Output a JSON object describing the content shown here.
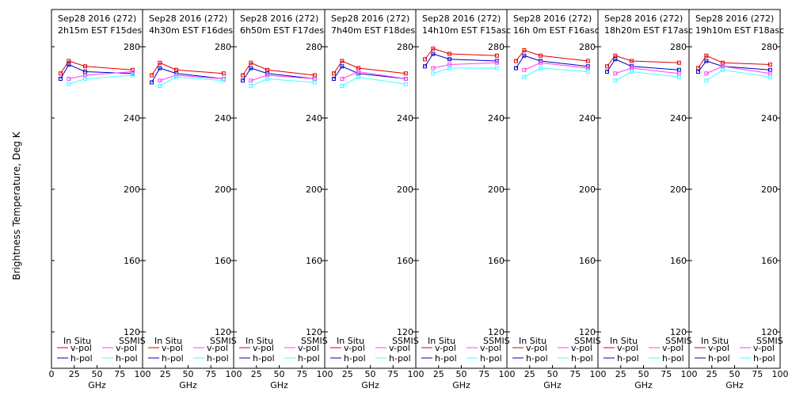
{
  "figure": {
    "ylabel": "Brightness Temperature, Deg K",
    "xlabel": "GHz",
    "legend_in_situ": "In Situ",
    "legend_ssmis": "SSMIS",
    "legend_vpol": "v-pol",
    "legend_hpol": "h-pol",
    "colors": {
      "insitu_v": "#e00000",
      "insitu_h": "#0000c0",
      "ssmis_v": "#ff40ff",
      "ssmis_h": "#40ffff",
      "axis": "#000000"
    }
  },
  "chart_data": [
    {
      "type": "line",
      "title_line1": "Sep28 2016 (272)",
      "title_line2": "2h15m EST F15des",
      "xlabel": "GHz",
      "ylabel": "Brightness Temperature, Deg K",
      "x_ticks": [
        "0",
        "25",
        "50",
        "75",
        "100"
      ],
      "y_ticks": [
        "120",
        "160",
        "200",
        "240",
        "280"
      ],
      "xlim": [
        0,
        100
      ],
      "ylim": [
        100,
        295
      ],
      "x": [
        10,
        19,
        37,
        89
      ],
      "series": [
        {
          "name": "In Situ v-pol",
          "values": [
            265,
            272,
            269,
            267
          ]
        },
        {
          "name": "In Situ h-pol",
          "values": [
            262,
            270,
            266,
            265
          ]
        },
        {
          "name": "SSMIS v-pol",
          "values": [
            null,
            262,
            264,
            266
          ]
        },
        {
          "name": "SSMIS h-pol",
          "values": [
            null,
            259,
            262,
            264
          ]
        }
      ]
    },
    {
      "type": "line",
      "title_line1": "Sep28 2016 (272)",
      "title_line2": "4h30m EST F16des",
      "xlabel": "GHz",
      "ylabel": "",
      "x_ticks": [
        "25",
        "50",
        "75",
        "100"
      ],
      "y_ticks": [
        "120",
        "160",
        "200",
        "240",
        "280"
      ],
      "xlim": [
        0,
        100
      ],
      "ylim": [
        100,
        295
      ],
      "x": [
        10,
        19,
        37,
        89
      ],
      "series": [
        {
          "name": "In Situ v-pol",
          "values": [
            264,
            271,
            267,
            265
          ]
        },
        {
          "name": "In Situ h-pol",
          "values": [
            260,
            268,
            265,
            262
          ]
        },
        {
          "name": "SSMIS v-pol",
          "values": [
            null,
            261,
            264,
            262
          ]
        },
        {
          "name": "SSMIS h-pol",
          "values": [
            null,
            258,
            263,
            261
          ]
        }
      ]
    },
    {
      "type": "line",
      "title_line1": "Sep28 2016 (272)",
      "title_line2": "6h50m EST F17des",
      "xlabel": "GHz",
      "ylabel": "",
      "x_ticks": [
        "25",
        "50",
        "75",
        "100"
      ],
      "y_ticks": [
        "120",
        "160",
        "200",
        "240",
        "280"
      ],
      "xlim": [
        0,
        100
      ],
      "ylim": [
        100,
        295
      ],
      "x": [
        10,
        19,
        37,
        89
      ],
      "series": [
        {
          "name": "In Situ v-pol",
          "values": [
            264,
            271,
            267,
            264
          ]
        },
        {
          "name": "In Situ h-pol",
          "values": [
            261,
            268,
            265,
            262
          ]
        },
        {
          "name": "SSMIS v-pol",
          "values": [
            null,
            261,
            264,
            262
          ]
        },
        {
          "name": "SSMIS h-pol",
          "values": [
            null,
            258,
            262,
            260
          ]
        }
      ]
    },
    {
      "type": "line",
      "title_line1": "Sep28 2016 (272)",
      "title_line2": "7h40m EST F18des",
      "xlabel": "GHz",
      "ylabel": "",
      "x_ticks": [
        "25",
        "50",
        "75",
        "100"
      ],
      "y_ticks": [
        "120",
        "160",
        "200",
        "240",
        "280"
      ],
      "xlim": [
        0,
        100
      ],
      "ylim": [
        100,
        295
      ],
      "x": [
        10,
        19,
        37,
        89
      ],
      "series": [
        {
          "name": "In Situ v-pol",
          "values": [
            265,
            272,
            268,
            265
          ]
        },
        {
          "name": "In Situ h-pol",
          "values": [
            262,
            269,
            265,
            262
          ]
        },
        {
          "name": "SSMIS v-pol",
          "values": [
            null,
            262,
            266,
            262
          ]
        },
        {
          "name": "SSMIS h-pol",
          "values": [
            null,
            258,
            263,
            259
          ]
        }
      ]
    },
    {
      "type": "line",
      "title_line1": "Sep28 2016 (272)",
      "title_line2": "14h10m EST F15asc",
      "xlabel": "GHz",
      "ylabel": "",
      "x_ticks": [
        "25",
        "50",
        "75",
        "100"
      ],
      "y_ticks": [
        "120",
        "160",
        "200",
        "240",
        "280"
      ],
      "xlim": [
        0,
        100
      ],
      "ylim": [
        100,
        295
      ],
      "x": [
        10,
        19,
        37,
        89
      ],
      "series": [
        {
          "name": "In Situ v-pol",
          "values": [
            273,
            279,
            276,
            275
          ]
        },
        {
          "name": "In Situ h-pol",
          "values": [
            269,
            276,
            273,
            272
          ]
        },
        {
          "name": "SSMIS v-pol",
          "values": [
            null,
            268,
            270,
            271
          ]
        },
        {
          "name": "SSMIS h-pol",
          "values": [
            null,
            265,
            268,
            268
          ]
        }
      ]
    },
    {
      "type": "line",
      "title_line1": "Sep28 2016 (272)",
      "title_line2": "16h 0m EST F16asc",
      "xlabel": "GHz",
      "ylabel": "",
      "x_ticks": [
        "25",
        "50",
        "75",
        "100"
      ],
      "y_ticks": [
        "120",
        "160",
        "200",
        "240",
        "280"
      ],
      "xlim": [
        0,
        100
      ],
      "ylim": [
        100,
        295
      ],
      "x": [
        10,
        19,
        37,
        89
      ],
      "series": [
        {
          "name": "In Situ v-pol",
          "values": [
            272,
            278,
            275,
            272
          ]
        },
        {
          "name": "In Situ h-pol",
          "values": [
            268,
            275,
            272,
            269
          ]
        },
        {
          "name": "SSMIS v-pol",
          "values": [
            null,
            267,
            271,
            268
          ]
        },
        {
          "name": "SSMIS h-pol",
          "values": [
            null,
            263,
            268,
            266
          ]
        }
      ]
    },
    {
      "type": "line",
      "title_line1": "Sep28 2016 (272)",
      "title_line2": "18h20m EST F17asc",
      "xlabel": "GHz",
      "ylabel": "",
      "x_ticks": [
        "25",
        "50",
        "75",
        "100"
      ],
      "y_ticks": [
        "120",
        "160",
        "200",
        "240",
        "280"
      ],
      "xlim": [
        0,
        100
      ],
      "ylim": [
        100,
        295
      ],
      "x": [
        10,
        19,
        37,
        89
      ],
      "series": [
        {
          "name": "In Situ v-pol",
          "values": [
            269,
            275,
            272,
            271
          ]
        },
        {
          "name": "In Situ h-pol",
          "values": [
            266,
            273,
            269,
            267
          ]
        },
        {
          "name": "SSMIS v-pol",
          "values": [
            null,
            265,
            268,
            265
          ]
        },
        {
          "name": "SSMIS h-pol",
          "values": [
            null,
            261,
            266,
            263
          ]
        }
      ]
    },
    {
      "type": "line",
      "title_line1": "Sep28 2016 (272)",
      "title_line2": "19h10m EST F18asc",
      "xlabel": "GHz",
      "ylabel": "",
      "x_ticks": [
        "25",
        "50",
        "75",
        "100"
      ],
      "y_ticks": [
        "120",
        "160",
        "200",
        "240",
        "280"
      ],
      "xlim": [
        0,
        100
      ],
      "ylim": [
        100,
        295
      ],
      "x": [
        10,
        19,
        37,
        89
      ],
      "series": [
        {
          "name": "In Situ v-pol",
          "values": [
            268,
            275,
            271,
            270
          ]
        },
        {
          "name": "In Situ h-pol",
          "values": [
            266,
            272,
            269,
            267
          ]
        },
        {
          "name": "SSMIS v-pol",
          "values": [
            null,
            265,
            269,
            265
          ]
        },
        {
          "name": "SSMIS h-pol",
          "values": [
            null,
            261,
            267,
            263
          ]
        }
      ]
    }
  ]
}
